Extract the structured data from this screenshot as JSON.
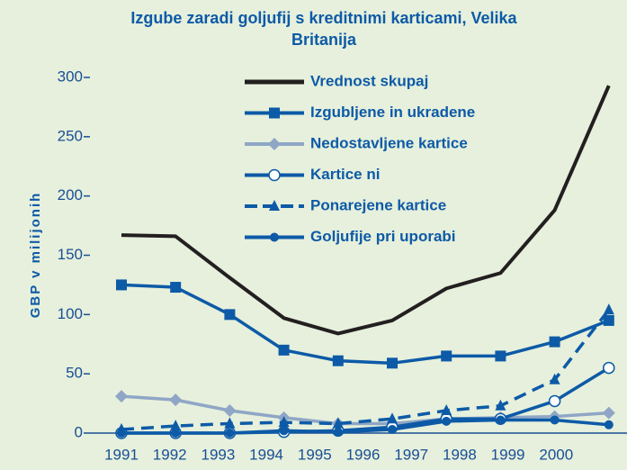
{
  "chart_data": {
    "type": "line",
    "title": "Izgube zaradi goljufij s kreditnimi karticami, Velika Britanija",
    "y_label": "GBP v milijonih",
    "categories": [
      "1991",
      "1992",
      "1993",
      "1994",
      "1995",
      "1996",
      "1997",
      "1998",
      "1999",
      "2000"
    ],
    "ylim": [
      0,
      300
    ],
    "yticks": [
      0,
      50,
      100,
      150,
      200,
      250,
      300
    ],
    "series": [
      {
        "name": "Vrednost skupaj",
        "color": "#231f20",
        "marker": "none",
        "dashed": false,
        "values": [
          167,
          166,
          131,
          97,
          84,
          95,
          122,
          135,
          188,
          293
        ]
      },
      {
        "name": "Izgubljene in ukradene",
        "color": "#0d5aa7",
        "marker": "square",
        "dashed": false,
        "values": [
          125,
          123,
          100,
          70,
          61,
          59,
          65,
          65,
          77,
          95
        ]
      },
      {
        "name": "Nedostavljene kartice",
        "color": "#8fa6c6",
        "marker": "diamond",
        "dashed": false,
        "values": [
          31,
          28,
          19,
          13,
          8,
          8,
          12,
          13,
          14,
          17
        ]
      },
      {
        "name": "Kartice ni",
        "color": "#0d5aa7",
        "marker": "open-circle",
        "dashed": false,
        "values": [
          0,
          0,
          0,
          1,
          2,
          5,
          12,
          12,
          27,
          55
        ]
      },
      {
        "name": "Ponarejene kartice",
        "color": "#0d5aa7",
        "marker": "triangle",
        "dashed": true,
        "values": [
          3,
          6,
          8,
          9,
          8,
          12,
          19,
          23,
          45,
          104
        ]
      },
      {
        "name": "Goljufije pri uporabi",
        "color": "#0d5aa7",
        "marker": "circle",
        "dashed": false,
        "values": [
          0,
          0,
          0,
          2,
          1,
          3,
          10,
          11,
          11,
          7
        ]
      }
    ]
  }
}
